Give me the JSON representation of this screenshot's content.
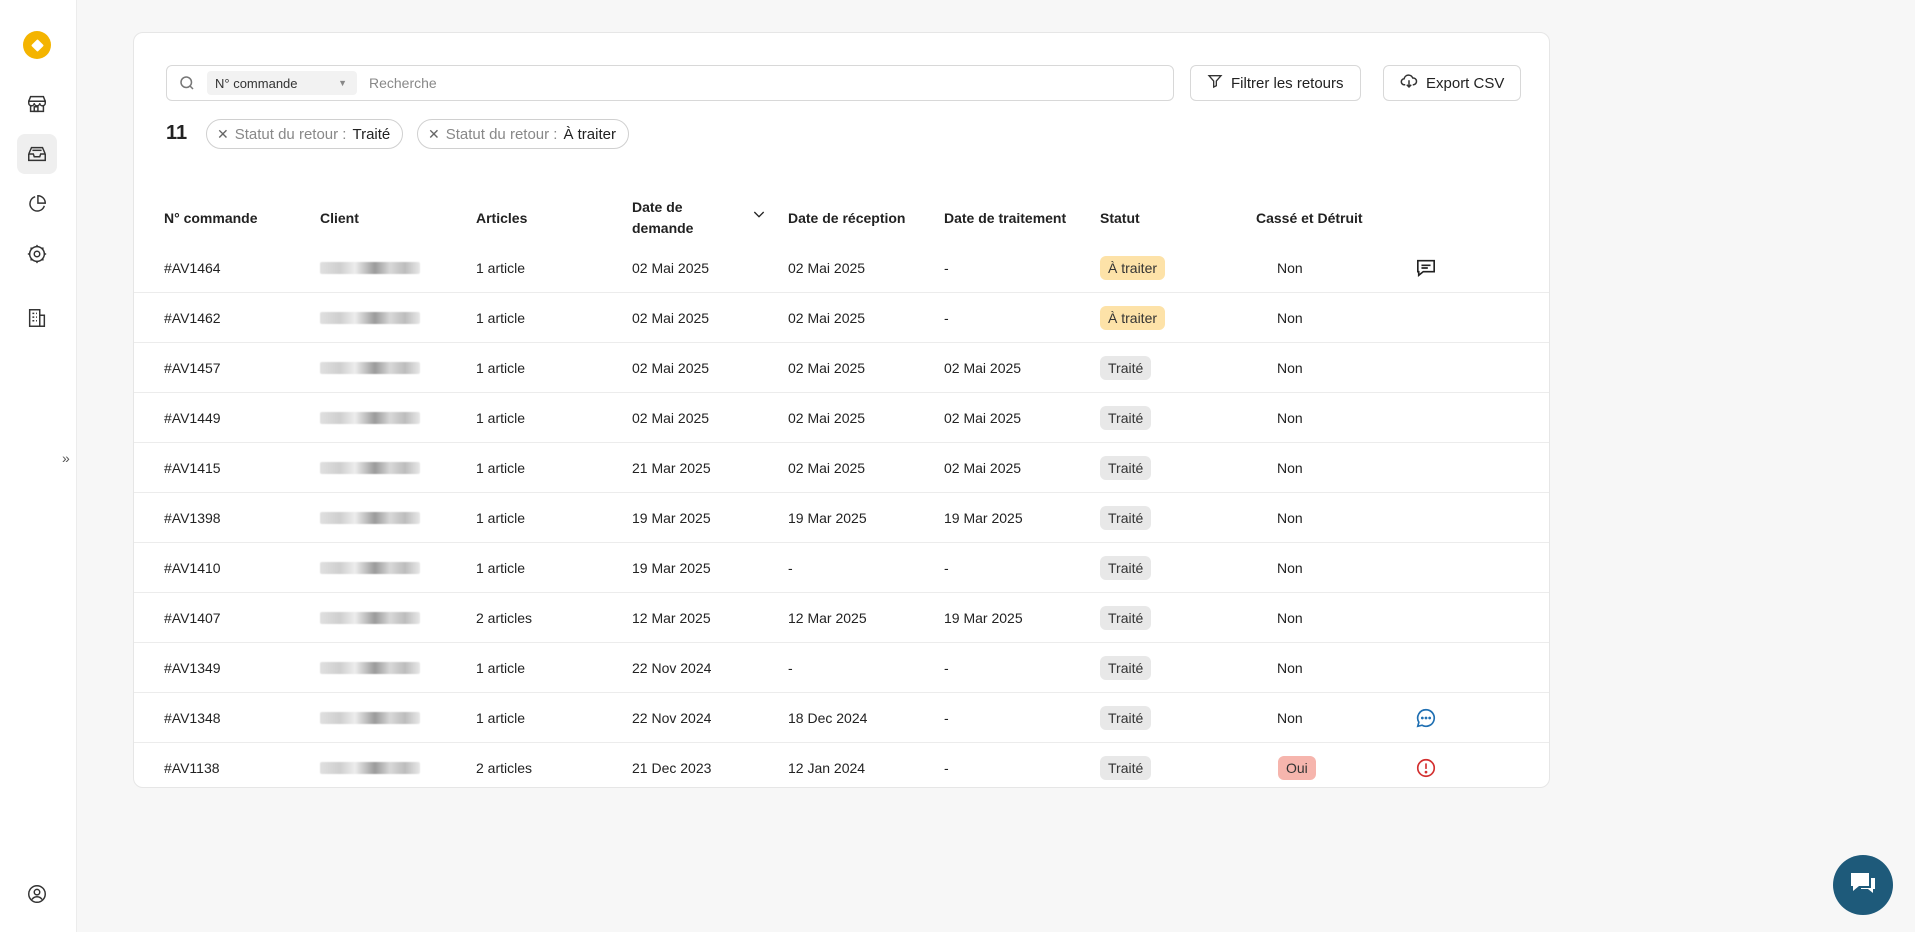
{
  "sidebar": {
    "items": [
      "store-icon",
      "returns-icon",
      "analytics-icon",
      "settings-icon",
      "company-icon"
    ],
    "active": "returns-icon",
    "bottom": "account-icon"
  },
  "search": {
    "field_select": "N° commande",
    "placeholder": "Recherche"
  },
  "toolbar": {
    "filter_label": "Filtrer les retours",
    "export_label": "Export CSV"
  },
  "results": {
    "count": "11",
    "chips": [
      {
        "label": "Statut du retour :",
        "value": "Traité"
      },
      {
        "label": "Statut du retour :",
        "value": "À traiter"
      }
    ]
  },
  "table": {
    "headers": {
      "order": "N° commande",
      "client": "Client",
      "articles": "Articles",
      "request_date": "Date de demande",
      "reception_date": "Date de réception",
      "processing_date": "Date de traitement",
      "status": "Statut",
      "broken": "Cassé et Détruit"
    },
    "rows": [
      {
        "order": "#AV1464",
        "articles": "1 article",
        "request": "02 Mai 2025",
        "reception": "02 Mai 2025",
        "processing": "-",
        "status": "À traiter",
        "status_kind": "todo",
        "broken": "Non",
        "broken_kind": "no",
        "icon": "comment-outline-icon"
      },
      {
        "order": "#AV1462",
        "articles": "1 article",
        "request": "02 Mai 2025",
        "reception": "02 Mai 2025",
        "processing": "-",
        "status": "À traiter",
        "status_kind": "todo",
        "broken": "Non",
        "broken_kind": "no",
        "icon": ""
      },
      {
        "order": "#AV1457",
        "articles": "1 article",
        "request": "02 Mai 2025",
        "reception": "02 Mai 2025",
        "processing": "02 Mai 2025",
        "status": "Traité",
        "status_kind": "done",
        "broken": "Non",
        "broken_kind": "no",
        "icon": ""
      },
      {
        "order": "#AV1449",
        "articles": "1 article",
        "request": "02 Mai 2025",
        "reception": "02 Mai 2025",
        "processing": "02 Mai 2025",
        "status": "Traité",
        "status_kind": "done",
        "broken": "Non",
        "broken_kind": "no",
        "icon": ""
      },
      {
        "order": "#AV1415",
        "articles": "1 article",
        "request": "21 Mar 2025",
        "reception": "02 Mai 2025",
        "processing": "02 Mai 2025",
        "status": "Traité",
        "status_kind": "done",
        "broken": "Non",
        "broken_kind": "no",
        "icon": ""
      },
      {
        "order": "#AV1398",
        "articles": "1 article",
        "request": "19 Mar 2025",
        "reception": "19 Mar 2025",
        "processing": "19 Mar 2025",
        "status": "Traité",
        "status_kind": "done",
        "broken": "Non",
        "broken_kind": "no",
        "icon": ""
      },
      {
        "order": "#AV1410",
        "articles": "1 article",
        "request": "19 Mar 2025",
        "reception": "-",
        "processing": "-",
        "status": "Traité",
        "status_kind": "done",
        "broken": "Non",
        "broken_kind": "no",
        "icon": ""
      },
      {
        "order": "#AV1407",
        "articles": "2 articles",
        "request": "12 Mar 2025",
        "reception": "12 Mar 2025",
        "processing": "19 Mar 2025",
        "status": "Traité",
        "status_kind": "done",
        "broken": "Non",
        "broken_kind": "no",
        "icon": ""
      },
      {
        "order": "#AV1349",
        "articles": "1 article",
        "request": "22 Nov 2024",
        "reception": "-",
        "processing": "-",
        "status": "Traité",
        "status_kind": "done",
        "broken": "Non",
        "broken_kind": "no",
        "icon": ""
      },
      {
        "order": "#AV1348",
        "articles": "1 article",
        "request": "22 Nov 2024",
        "reception": "18 Dec 2024",
        "processing": "-",
        "status": "Traité",
        "status_kind": "done",
        "broken": "Non",
        "broken_kind": "no",
        "icon": "comment-blue-icon"
      },
      {
        "order": "#AV1138",
        "articles": "2 articles",
        "request": "21 Dec 2023",
        "reception": "12 Jan 2024",
        "processing": "-",
        "status": "Traité",
        "status_kind": "done",
        "broken": "Oui",
        "broken_kind": "yes",
        "icon": "alert-circle-icon"
      }
    ]
  },
  "colors": {
    "todo": "#fde2a8",
    "done": "#e8e8e8",
    "yes": "#f6b5ad",
    "alert": "#d32f2f",
    "comment": "#1f6fb2",
    "chat": "#1e5a7a",
    "logo": "#f4b400"
  }
}
